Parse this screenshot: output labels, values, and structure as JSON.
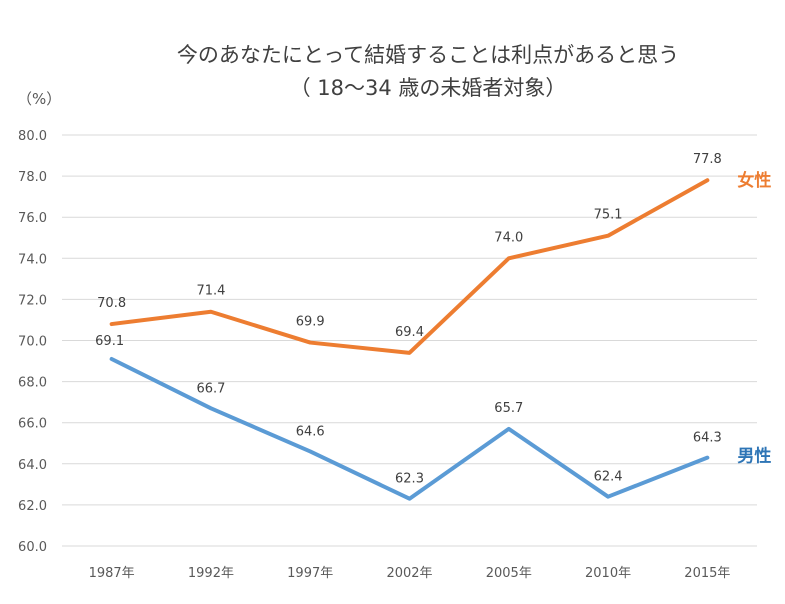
{
  "chart_data": {
    "type": "line",
    "title_line1": "今のあなたにとって結婚することは利点があると思う",
    "title_line2": "（ 18～34 歳の未婚者対象）",
    "unit_label": "（%）",
    "categories": [
      "1987年",
      "1992年",
      "1997年",
      "2002年",
      "2005年",
      "2010年",
      "2015年"
    ],
    "ylim": [
      60,
      80
    ],
    "ytick_step": 2,
    "yticks": [
      "60.0",
      "62.0",
      "64.0",
      "66.0",
      "68.0",
      "70.0",
      "72.0",
      "74.0",
      "76.0",
      "78.0",
      "80.0"
    ],
    "grid": true,
    "series": [
      {
        "name": "女性",
        "color": "#ed7d31",
        "values": [
          70.8,
          71.4,
          69.9,
          69.4,
          74.0,
          75.1,
          77.8
        ],
        "labels": [
          "70.8",
          "71.4",
          "69.9",
          "69.4",
          "74.0",
          "75.1",
          "77.8"
        ]
      },
      {
        "name": "男性",
        "color": "#5b9bd5",
        "label_color": "#2e75b6",
        "values": [
          69.1,
          66.7,
          64.6,
          62.3,
          65.7,
          62.4,
          64.3
        ],
        "labels": [
          "69.1",
          "66.7",
          "64.6",
          "62.3",
          "65.7",
          "62.4",
          "64.3"
        ]
      }
    ]
  }
}
